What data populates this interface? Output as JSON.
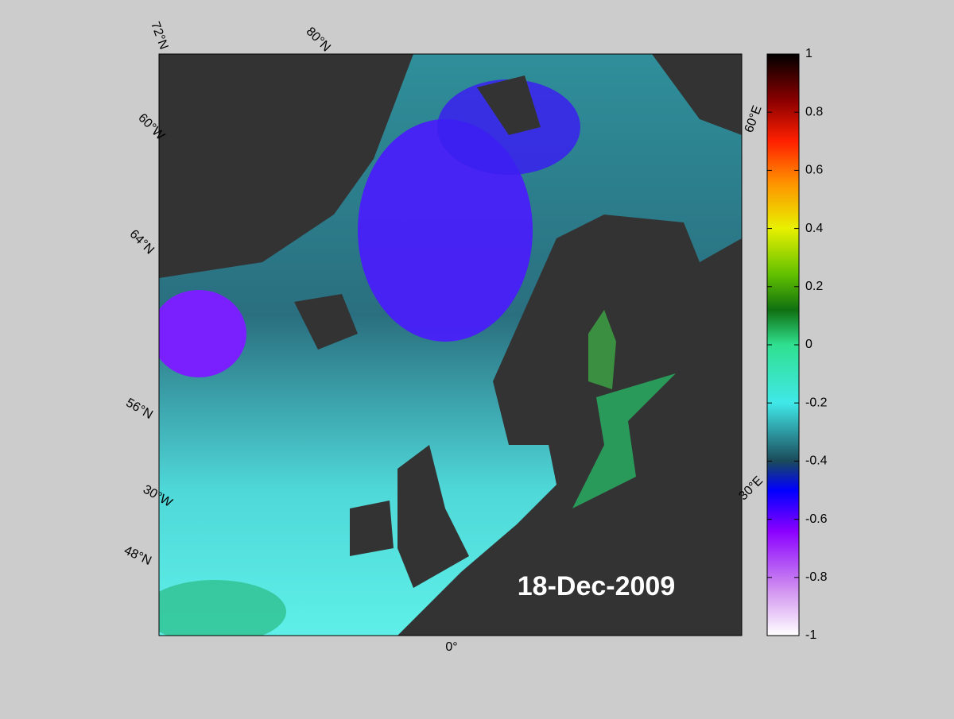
{
  "map": {
    "date_label": "18-Dec-2009",
    "graticule_labels": [
      "72°N",
      "80°N",
      "60°W",
      "64°N",
      "56°N",
      "30°W",
      "48°N",
      "0°",
      "60°E",
      "30°E"
    ]
  },
  "colorbar": {
    "lim": [
      -1,
      1
    ],
    "ticks": [
      1,
      0.8,
      0.6,
      0.4,
      0.2,
      0,
      -0.2,
      -0.4,
      -0.6,
      -0.8,
      -1
    ]
  }
}
